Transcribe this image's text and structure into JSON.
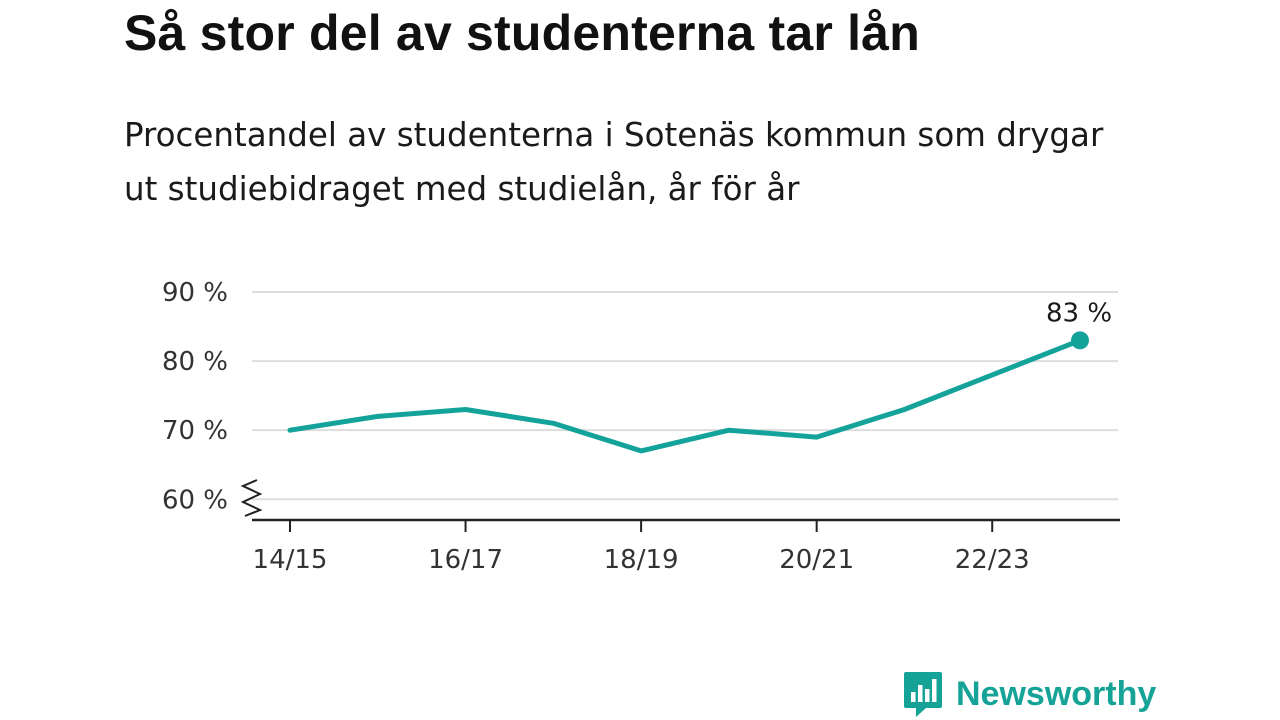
{
  "header": {
    "title": "Så stor del av studenterna tar lån",
    "subtitle": "Procentandel av studenterna i Sotenäs kommun som drygar ut studiebidraget med studielån, år för år"
  },
  "brand": {
    "name": "Newsworthy",
    "logo_icon": "bar-chart-speech-bubble-icon",
    "color": "#14a396"
  },
  "colors": {
    "line": "#14a39a",
    "grid": "#dddddd",
    "axis": "#222222"
  },
  "chart_data": {
    "type": "line",
    "x": [
      "14/15",
      "15/16",
      "16/17",
      "17/18",
      "18/19",
      "19/20",
      "20/21",
      "21/22",
      "22/23",
      "23/24"
    ],
    "series": [
      {
        "values": [
          70,
          72,
          73,
          71,
          67,
          70,
          69,
          73,
          78,
          83
        ]
      }
    ],
    "x_tick_labels": [
      "14/15",
      "16/17",
      "18/19",
      "20/21",
      "22/23"
    ],
    "y_ticks": [
      60,
      70,
      80,
      90
    ],
    "y_tick_labels": [
      "60 %",
      "70 %",
      "80 %",
      "90 %"
    ],
    "ylim": [
      57,
      90
    ],
    "y_axis_break": true,
    "grid": true,
    "end_label": "83 %"
  }
}
